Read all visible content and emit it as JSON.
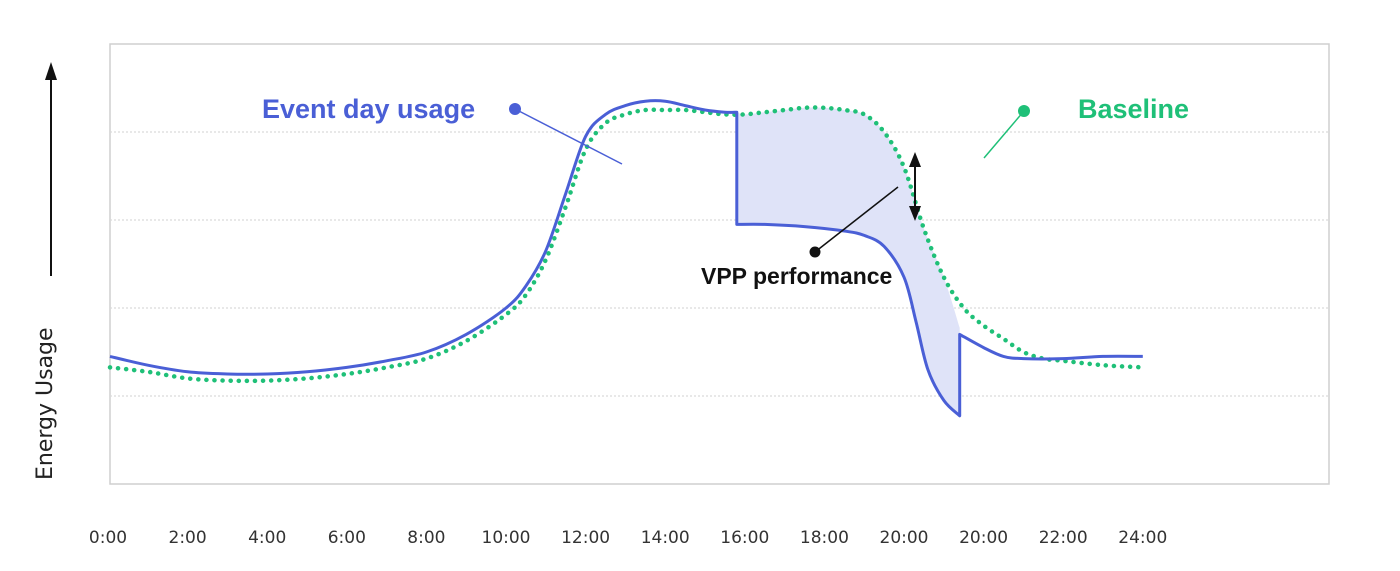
{
  "chart_data": {
    "type": "line",
    "title": "",
    "xlabel": "",
    "ylabel": "Energy Usage",
    "x_tick_labels": [
      "0:00",
      "2:00",
      "4:00",
      "6:00",
      "8:00",
      "10:00",
      "12:00",
      "14:00",
      "16:00",
      "18:00",
      "20:00",
      "20:00",
      "22:00",
      "24:00"
    ],
    "grid": true,
    "legend": "inline annotations",
    "series": [
      {
        "name": "Event day usage",
        "color": "#4a5fd6",
        "style": "solid",
        "points": [
          [
            0,
            0.29
          ],
          [
            1,
            0.27
          ],
          [
            2,
            0.255
          ],
          [
            3,
            0.25
          ],
          [
            4,
            0.25
          ],
          [
            5,
            0.255
          ],
          [
            6,
            0.265
          ],
          [
            7,
            0.28
          ],
          [
            8,
            0.3
          ],
          [
            9,
            0.34
          ],
          [
            10,
            0.4
          ],
          [
            10.5,
            0.45
          ],
          [
            11,
            0.53
          ],
          [
            11.5,
            0.66
          ],
          [
            12,
            0.79
          ],
          [
            12.5,
            0.84
          ],
          [
            13,
            0.86
          ],
          [
            13.5,
            0.87
          ],
          [
            14,
            0.87
          ],
          [
            14.5,
            0.86
          ],
          [
            15,
            0.85
          ],
          [
            15.5,
            0.845
          ],
          [
            15.8,
            0.845
          ],
          [
            15.8,
            0.59
          ],
          [
            16.5,
            0.59
          ],
          [
            17.5,
            0.585
          ],
          [
            18.5,
            0.575
          ],
          [
            19,
            0.565
          ],
          [
            19.5,
            0.54
          ],
          [
            20,
            0.47
          ],
          [
            20.3,
            0.37
          ],
          [
            20.6,
            0.26
          ],
          [
            21,
            0.19
          ],
          [
            21.4,
            0.155
          ],
          [
            21.4,
            0.34
          ],
          [
            22,
            0.31
          ],
          [
            22.5,
            0.29
          ],
          [
            23,
            0.285
          ],
          [
            24,
            0.285
          ],
          [
            25,
            0.29
          ],
          [
            26,
            0.29
          ]
        ]
      },
      {
        "name": "Baseline",
        "color": "#1fc078",
        "style": "dotted",
        "points": [
          [
            0,
            0.265
          ],
          [
            1,
            0.255
          ],
          [
            2,
            0.24
          ],
          [
            3,
            0.235
          ],
          [
            4,
            0.235
          ],
          [
            5,
            0.24
          ],
          [
            6,
            0.25
          ],
          [
            7,
            0.265
          ],
          [
            8,
            0.285
          ],
          [
            9,
            0.325
          ],
          [
            10,
            0.385
          ],
          [
            10.5,
            0.43
          ],
          [
            11,
            0.51
          ],
          [
            11.5,
            0.63
          ],
          [
            12,
            0.76
          ],
          [
            12.5,
            0.82
          ],
          [
            13,
            0.84
          ],
          [
            13.5,
            0.85
          ],
          [
            14,
            0.85
          ],
          [
            14.5,
            0.85
          ],
          [
            15,
            0.845
          ],
          [
            15.5,
            0.84
          ],
          [
            16,
            0.84
          ],
          [
            16.5,
            0.845
          ],
          [
            17,
            0.85
          ],
          [
            17.5,
            0.855
          ],
          [
            18,
            0.855
          ],
          [
            18.5,
            0.85
          ],
          [
            19,
            0.84
          ],
          [
            19.5,
            0.8
          ],
          [
            20,
            0.72
          ],
          [
            20.5,
            0.58
          ],
          [
            21,
            0.47
          ],
          [
            21.5,
            0.4
          ],
          [
            22,
            0.36
          ],
          [
            22.5,
            0.33
          ],
          [
            23,
            0.3
          ],
          [
            23.5,
            0.285
          ],
          [
            24,
            0.28
          ],
          [
            25,
            0.27
          ],
          [
            26,
            0.265
          ]
        ]
      }
    ],
    "shaded_region": {
      "label": "VPP performance",
      "between": [
        "Baseline",
        "Event day usage"
      ],
      "x_range": [
        15.8,
        21.4
      ],
      "fill": "#dfe3f8"
    },
    "annotations": [
      {
        "text": "Event day usage",
        "color": "#4a5fd6"
      },
      {
        "text": "Baseline",
        "color": "#1fc078"
      },
      {
        "text": "VPP performance",
        "color": "#111111"
      }
    ]
  }
}
